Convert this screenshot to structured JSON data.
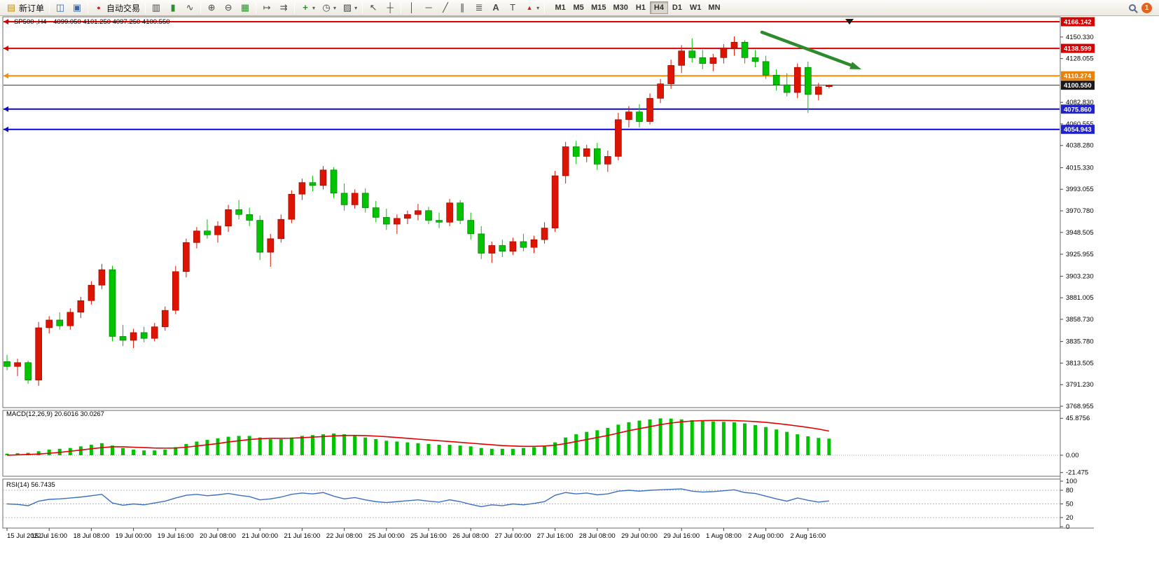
{
  "toolbar": {
    "new_order_label": "新订单",
    "autotrading_label": "自动交易",
    "text_tool_label": "A",
    "label_tool_label": "T",
    "timeframes": [
      "M1",
      "M5",
      "M15",
      "M30",
      "H1",
      "H4",
      "D1",
      "W1",
      "MN"
    ],
    "active_timeframe": "H4",
    "notification_count": "1"
  },
  "icons": {
    "symbol_marker": "▼",
    "new_order": "▤",
    "charts_window": "◫",
    "profiles": "▣",
    "autotrading_dot": "●",
    "bar_chart": "▥",
    "candle_chart": "▮",
    "line_chart": "∿",
    "zoom_in": "⊕",
    "zoom_out": "⊖",
    "grid": "▦",
    "auto_scroll": "↦",
    "chart_shift": "⇉",
    "indicators": "+",
    "periods": "◷",
    "templates": "▨",
    "cursor": "↖",
    "crosshair": "┼",
    "vline": "│",
    "hline": "─",
    "trendline": "╱",
    "channel": "∥",
    "fibonacci": "≣",
    "arrows_tool": "▲",
    "caret": "▾"
  },
  "chart": {
    "symbol": "SP500-,H4",
    "ohlc": "4099.050 4101.250 4097.250 4100.550",
    "macd_label": "MACD(12,26,9) 20.6016 30.0267",
    "rsi_label": "RSI(14) 56.7435"
  },
  "chart_data": {
    "type": "candlestick",
    "symbol": "SP500-,H4",
    "timeframe": "H4",
    "up_color": "#dd1500",
    "down_color": "#00c400",
    "label_step": 4,
    "time_labels": [
      "15 Jul 2022",
      "15 Jul 16:00",
      "18 Jul 08:00",
      "19 Jul 00:00",
      "19 Jul 16:00",
      "20 Jul 08:00",
      "21 Jul 00:00",
      "21 Jul 16:00",
      "22 Jul 08:00",
      "25 Jul 00:00",
      "25 Jul 16:00",
      "26 Jul 08:00",
      "27 Jul 00:00",
      "27 Jul 16:00",
      "28 Jul 08:00",
      "29 Jul 00:00",
      "29 Jul 16:00",
      "1 Aug 08:00",
      "2 Aug 00:00",
      "2 Aug 16:00"
    ],
    "candles_ohlc": [
      [
        3815,
        3822,
        3806,
        3810
      ],
      [
        3810,
        3818,
        3800,
        3814
      ],
      [
        3814,
        3816,
        3792,
        3796
      ],
      [
        3796,
        3856,
        3790,
        3850
      ],
      [
        3850,
        3862,
        3844,
        3858
      ],
      [
        3858,
        3866,
        3848,
        3852
      ],
      [
        3852,
        3870,
        3848,
        3866
      ],
      [
        3866,
        3882,
        3860,
        3878
      ],
      [
        3878,
        3898,
        3874,
        3894
      ],
      [
        3894,
        3916,
        3890,
        3910
      ],
      [
        3910,
        3914,
        3836,
        3841
      ],
      [
        3841,
        3853,
        3831,
        3837
      ],
      [
        3837,
        3849,
        3829,
        3845
      ],
      [
        3845,
        3851,
        3835,
        3839
      ],
      [
        3839,
        3855,
        3836,
        3851
      ],
      [
        3851,
        3872,
        3847,
        3868
      ],
      [
        3868,
        3914,
        3864,
        3908
      ],
      [
        3908,
        3942,
        3902,
        3938
      ],
      [
        3938,
        3954,
        3932,
        3950
      ],
      [
        3950,
        3962,
        3942,
        3946
      ],
      [
        3946,
        3960,
        3938,
        3955
      ],
      [
        3955,
        3977,
        3949,
        3972
      ],
      [
        3972,
        3982,
        3962,
        3967
      ],
      [
        3967,
        3974,
        3955,
        3961
      ],
      [
        3961,
        3966,
        3920,
        3928
      ],
      [
        3928,
        3947,
        3913,
        3942
      ],
      [
        3942,
        3967,
        3938,
        3962
      ],
      [
        3962,
        3992,
        3958,
        3988
      ],
      [
        3988,
        4004,
        3982,
        4000
      ],
      [
        4000,
        4007,
        3991,
        3997
      ],
      [
        3997,
        4017,
        3993,
        4013
      ],
      [
        4013,
        4016,
        3984,
        3989
      ],
      [
        3989,
        3999,
        3971,
        3977
      ],
      [
        3977,
        3993,
        3973,
        3989
      ],
      [
        3989,
        3994,
        3969,
        3974
      ],
      [
        3974,
        3981,
        3959,
        3964
      ],
      [
        3964,
        3973,
        3951,
        3957
      ],
      [
        3957,
        3967,
        3947,
        3963
      ],
      [
        3963,
        3971,
        3957,
        3967
      ],
      [
        3967,
        3978,
        3961,
        3971
      ],
      [
        3971,
        3975,
        3957,
        3961
      ],
      [
        3961,
        3969,
        3953,
        3959
      ],
      [
        3959,
        3983,
        3955,
        3979
      ],
      [
        3979,
        3982,
        3957,
        3961
      ],
      [
        3961,
        3969,
        3941,
        3947
      ],
      [
        3947,
        3955,
        3921,
        3927
      ],
      [
        3927,
        3939,
        3917,
        3935
      ],
      [
        3935,
        3941,
        3923,
        3929
      ],
      [
        3929,
        3943,
        3925,
        3939
      ],
      [
        3939,
        3947,
        3929,
        3933
      ],
      [
        3933,
        3945,
        3927,
        3941
      ],
      [
        3941,
        3959,
        3937,
        3953
      ],
      [
        3953,
        4012,
        3949,
        4007
      ],
      [
        4007,
        4042,
        3999,
        4037
      ],
      [
        4037,
        4043,
        4019,
        4027
      ],
      [
        4027,
        4039,
        4021,
        4035
      ],
      [
        4035,
        4041,
        4013,
        4019
      ],
      [
        4019,
        4033,
        4011,
        4027
      ],
      [
        4027,
        4072,
        4023,
        4065
      ],
      [
        4065,
        4079,
        4057,
        4073
      ],
      [
        4073,
        4081,
        4057,
        4063
      ],
      [
        4063,
        4092,
        4060,
        4087
      ],
      [
        4087,
        4107,
        4082,
        4102
      ],
      [
        4102,
        4127,
        4097,
        4121
      ],
      [
        4121,
        4142,
        4113,
        4136
      ],
      [
        4136,
        4149,
        4124,
        4129
      ],
      [
        4129,
        4137,
        4117,
        4123
      ],
      [
        4123,
        4133,
        4115,
        4129
      ],
      [
        4129,
        4143,
        4123,
        4139
      ],
      [
        4139,
        4151,
        4131,
        4145
      ],
      [
        4145,
        4147,
        4123,
        4129
      ],
      [
        4129,
        4137,
        4119,
        4125
      ],
      [
        4125,
        4131,
        4107,
        4111
      ],
      [
        4111,
        4117,
        4095,
        4101
      ],
      [
        4101,
        4113,
        4089,
        4093
      ],
      [
        4093,
        4123,
        4087,
        4119
      ],
      [
        4119,
        4125,
        4072,
        4091
      ],
      [
        4091,
        4103,
        4085,
        4099
      ],
      [
        4099.05,
        4101.25,
        4097.25,
        4100.55
      ]
    ],
    "price_axis": {
      "plain_ticks": [
        4150.33,
        4128.055,
        4082.83,
        4060.555,
        4038.28,
        4015.33,
        3993.055,
        3970.78,
        3948.505,
        3925.955,
        3903.23,
        3881.005,
        3858.73,
        3835.78,
        3813.505,
        3791.23,
        3768.955
      ],
      "badges": [
        {
          "price": 4166.142,
          "color": "#d60000"
        },
        {
          "price": 4138.599,
          "color": "#d60000"
        },
        {
          "price": 4110.274,
          "color": "#e8820e"
        },
        {
          "price": 4100.55,
          "color": "#1a1a1a"
        },
        {
          "price": 4075.86,
          "color": "#2222cc"
        },
        {
          "price": 4054.943,
          "color": "#2222cc"
        }
      ]
    },
    "level_lines": [
      {
        "price": 4166.142,
        "color": "#e00000",
        "width": 2,
        "marker": true
      },
      {
        "price": 4138.599,
        "color": "#e00000",
        "width": 2,
        "marker": true
      },
      {
        "price": 4110.274,
        "color": "#ff8a00",
        "width": 2,
        "marker": true
      },
      {
        "price": 4100.55,
        "color": "#333333",
        "width": 1,
        "marker": false
      },
      {
        "price": 4075.86,
        "color": "#0a0ad0",
        "width": 2,
        "marker": true
      },
      {
        "price": 4054.943,
        "color": "#0a0ad0",
        "width": 2,
        "marker": true
      }
    ],
    "macd": {
      "label": "MACD(12,26,9)",
      "value_main": 20.6016,
      "value_signal": 30.0267,
      "color_hist": "#00c400",
      "color_signal": "#e00000",
      "scale_ticks": [
        "45.8756",
        "0.00",
        "-21.475"
      ],
      "scale_values": [
        45.8756,
        0,
        -21.475
      ],
      "histogram": [
        2,
        2.5,
        3,
        5,
        7,
        8,
        9,
        11,
        13,
        15,
        12,
        9,
        7,
        6,
        6,
        7,
        10,
        14,
        17,
        19,
        21,
        23,
        24,
        24,
        22,
        20,
        20,
        22,
        24,
        25,
        26,
        27,
        26,
        24,
        22,
        20,
        18,
        17,
        16,
        15,
        14,
        13,
        13,
        12,
        11,
        9,
        8,
        8,
        8,
        9,
        10,
        12,
        16,
        22,
        26,
        29,
        31,
        34,
        38,
        41,
        43,
        44.5,
        45.8,
        45.5,
        44.5,
        43.5,
        42.5,
        42,
        41.5,
        41,
        39.5,
        37.5,
        35,
        32,
        29,
        26,
        23.5,
        21.5,
        20.6
      ],
      "signal": [
        0,
        0.5,
        1,
        1.5,
        2.5,
        3.5,
        5,
        6.5,
        8,
        9.5,
        10.5,
        10.5,
        10,
        9.5,
        9,
        8.8,
        9,
        10,
        11.5,
        13,
        14.5,
        16.5,
        18,
        19.5,
        20.5,
        21,
        21,
        21.2,
        21.8,
        22.5,
        23.2,
        24,
        24.5,
        24.6,
        24.4,
        23.8,
        23,
        22,
        21,
        20,
        19,
        18,
        17,
        16,
        15,
        14,
        13,
        12,
        11.5,
        11,
        11,
        11.5,
        12.5,
        14.5,
        17,
        19.5,
        22,
        24.5,
        27.5,
        30.5,
        33,
        35.5,
        38,
        40,
        41.5,
        42.5,
        43,
        43.2,
        43.2,
        43,
        42.5,
        41.8,
        40.8,
        39.5,
        38,
        36.3,
        34.5,
        32.5,
        30
      ]
    },
    "rsi": {
      "label": "RSI(14)",
      "value": 56.7435,
      "color": "#3a6fc4",
      "levels": [
        80,
        50,
        20
      ],
      "scale_ticks": [
        "100",
        "80",
        "50",
        "20",
        "0"
      ],
      "scale_values": [
        100,
        80,
        50,
        20,
        0
      ],
      "values": [
        50,
        49,
        46,
        56,
        60,
        61,
        63,
        65,
        68,
        71,
        52,
        47,
        50,
        48,
        52,
        56,
        63,
        69,
        71,
        68,
        70,
        73,
        69,
        66,
        59,
        61,
        65,
        71,
        74,
        72,
        75,
        67,
        61,
        64,
        59,
        55,
        53,
        55,
        57,
        59,
        56,
        54,
        59,
        55,
        49,
        44,
        48,
        46,
        50,
        48,
        51,
        55,
        69,
        75,
        72,
        74,
        70,
        72,
        78,
        80,
        78,
        80,
        81,
        82,
        83,
        78,
        76,
        77,
        79,
        81,
        75,
        73,
        67,
        61,
        56,
        63,
        58,
        54,
        56.7
      ],
      "annotation_arrow_note": ""
    },
    "annotation_arrow": {
      "color": "#2d8a2d"
    }
  }
}
